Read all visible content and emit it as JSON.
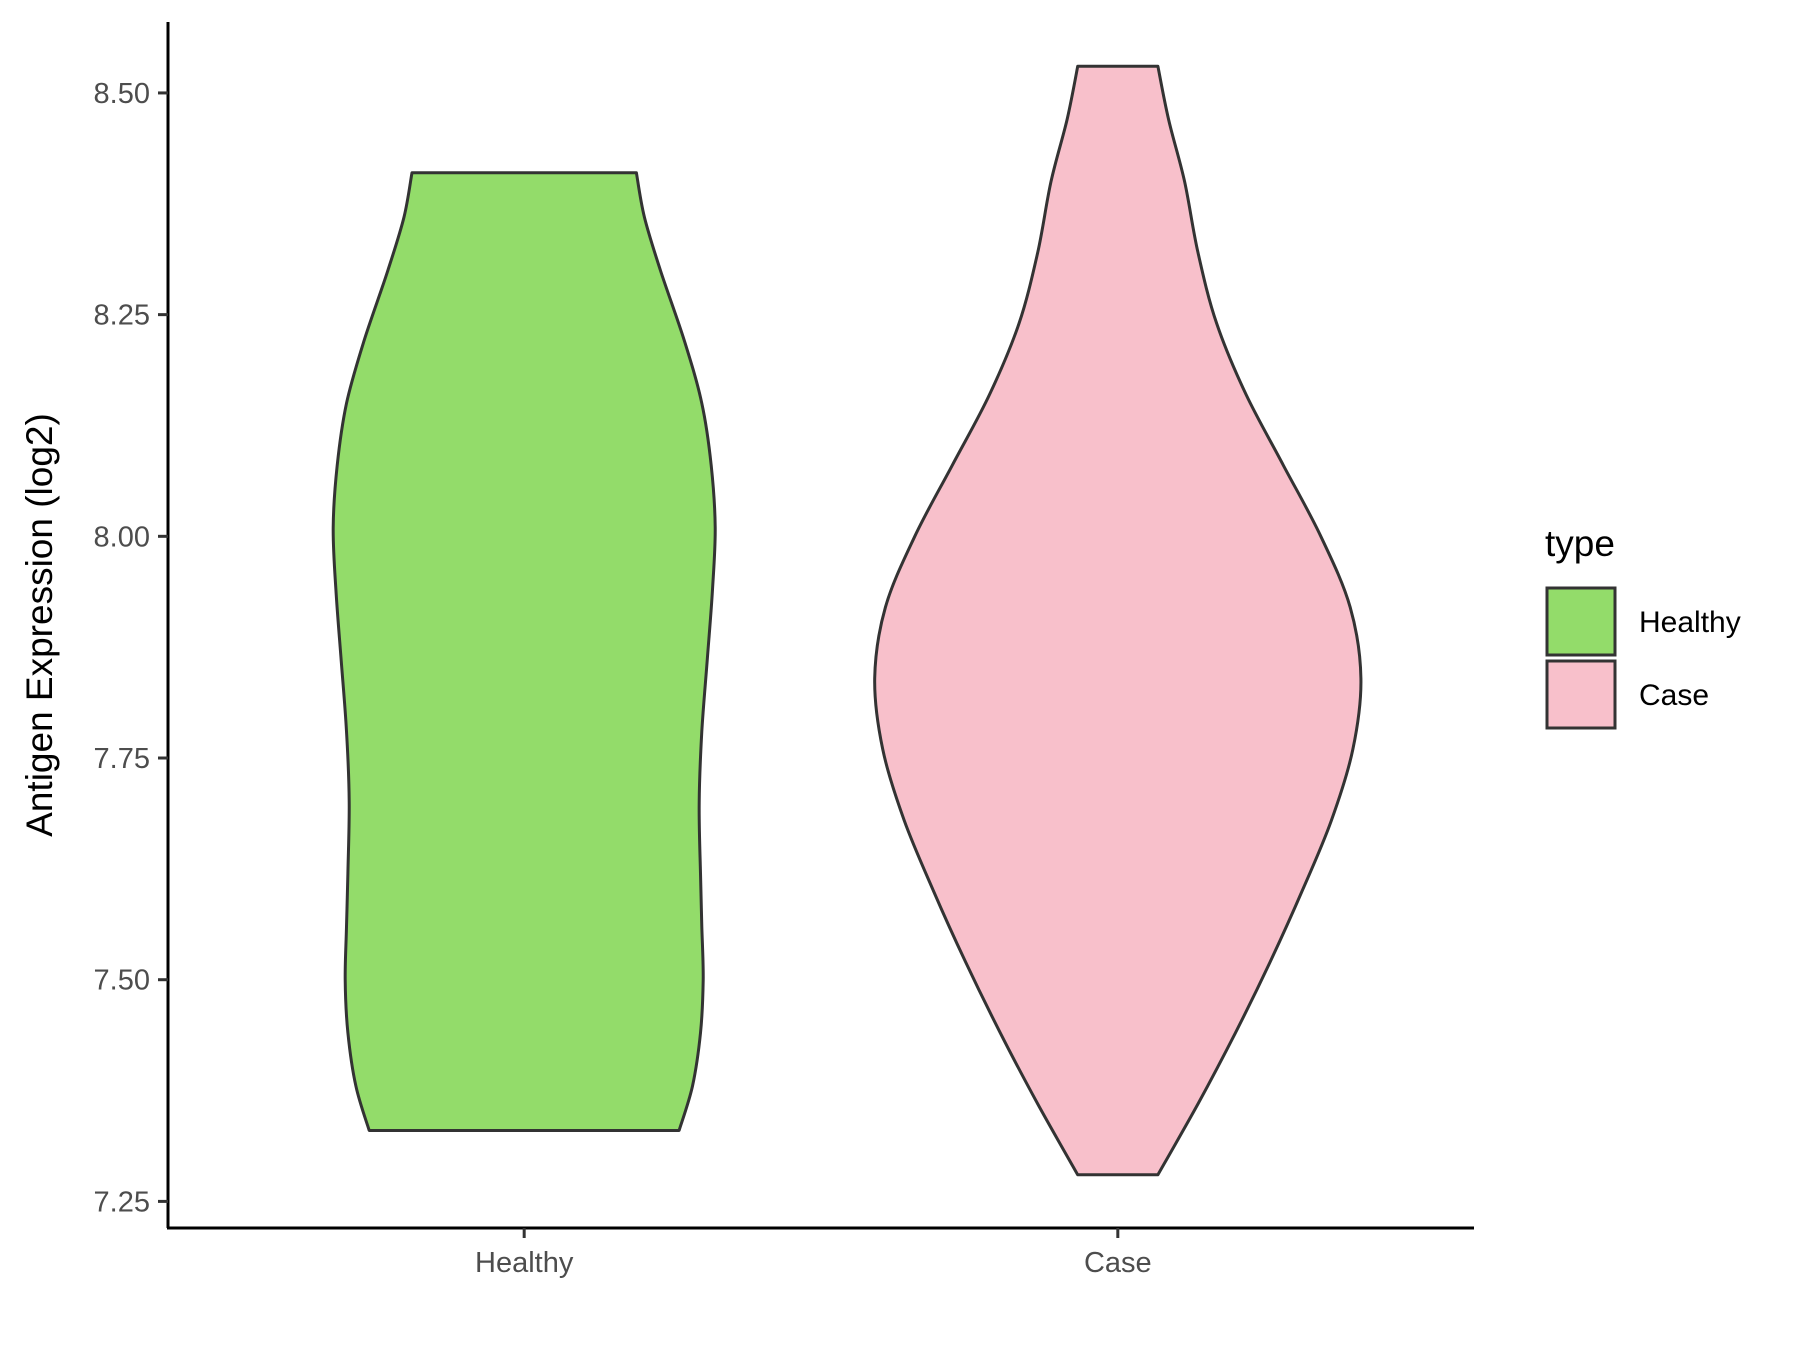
{
  "chart_data": {
    "type": "violin",
    "title": "",
    "xlabel": "",
    "ylabel": "Antigen Expression (log2)",
    "ylim": [
      7.22,
      8.58
    ],
    "yticks": [
      "7.25",
      "7.50",
      "7.75",
      "8.00",
      "8.25",
      "8.50"
    ],
    "categories": [
      "Healthy",
      "Case"
    ],
    "grid": false,
    "legend": {
      "title": "type",
      "position": "right",
      "entries": [
        {
          "label": "Healthy",
          "color": "#93dc6a"
        },
        {
          "label": "Case",
          "color": "#f8c0cb"
        }
      ]
    },
    "series": [
      {
        "name": "Healthy",
        "color": "#93dc6a",
        "min": 7.33,
        "max": 8.41,
        "density_profile": [
          [
            7.33,
            0.58
          ],
          [
            7.38,
            0.63
          ],
          [
            7.44,
            0.66
          ],
          [
            7.5,
            0.67
          ],
          [
            7.56,
            0.665
          ],
          [
            7.62,
            0.66
          ],
          [
            7.7,
            0.655
          ],
          [
            7.78,
            0.665
          ],
          [
            7.86,
            0.685
          ],
          [
            7.94,
            0.705
          ],
          [
            8.01,
            0.715
          ],
          [
            8.08,
            0.7
          ],
          [
            8.15,
            0.665
          ],
          [
            8.22,
            0.6
          ],
          [
            8.3,
            0.51
          ],
          [
            8.36,
            0.45
          ],
          [
            8.41,
            0.42
          ]
        ]
      },
      {
        "name": "Case",
        "color": "#f8c0cb",
        "min": 7.28,
        "max": 8.53,
        "density_profile": [
          [
            7.28,
            0.15
          ],
          [
            7.36,
            0.3
          ],
          [
            7.44,
            0.44
          ],
          [
            7.52,
            0.57
          ],
          [
            7.6,
            0.69
          ],
          [
            7.68,
            0.8
          ],
          [
            7.76,
            0.88
          ],
          [
            7.84,
            0.91
          ],
          [
            7.92,
            0.87
          ],
          [
            8.0,
            0.76
          ],
          [
            8.08,
            0.62
          ],
          [
            8.16,
            0.48
          ],
          [
            8.24,
            0.37
          ],
          [
            8.32,
            0.3
          ],
          [
            8.4,
            0.25
          ],
          [
            8.47,
            0.19
          ],
          [
            8.53,
            0.15
          ]
        ]
      }
    ]
  }
}
